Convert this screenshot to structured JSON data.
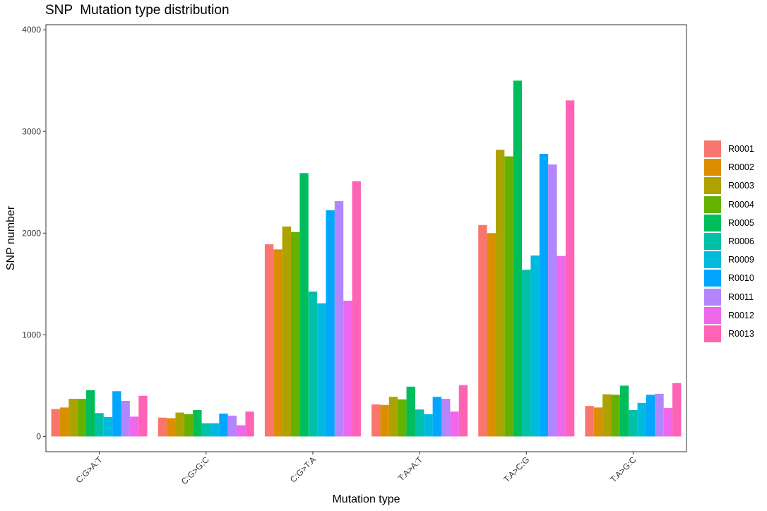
{
  "chart_data": {
    "type": "bar",
    "title": "SNP  Mutation type distribution",
    "xlabel": "Mutation type",
    "ylabel": "SNP number",
    "ylim": [
      -150,
      4050
    ],
    "yticks": [
      0,
      1000,
      2000,
      3000,
      4000
    ],
    "grid": false,
    "legend_position": "right",
    "categories": [
      "C:G>A:T",
      "C:G>G:C",
      "C:G>T:A",
      "T:A>A:T",
      "T:A>C:G",
      "T:A>G:C"
    ],
    "series": [
      {
        "name": "R0001",
        "color": "#F8766D",
        "values": [
          270,
          185,
          1890,
          315,
          2080,
          300
        ]
      },
      {
        "name": "R0002",
        "color": "#DB8E00",
        "values": [
          285,
          180,
          1840,
          310,
          2000,
          285
        ]
      },
      {
        "name": "R0003",
        "color": "#AEA200",
        "values": [
          370,
          235,
          2065,
          390,
          2820,
          415
        ]
      },
      {
        "name": "R0004",
        "color": "#64B200",
        "values": [
          370,
          220,
          2010,
          365,
          2755,
          410
        ]
      },
      {
        "name": "R0005",
        "color": "#00BD5C",
        "values": [
          455,
          260,
          2590,
          490,
          3500,
          500
        ]
      },
      {
        "name": "R0006",
        "color": "#00C1A7",
        "values": [
          230,
          130,
          1425,
          265,
          1640,
          260
        ]
      },
      {
        "name": "R0009",
        "color": "#00BADE",
        "values": [
          190,
          130,
          1310,
          220,
          1780,
          330
        ]
      },
      {
        "name": "R0010",
        "color": "#00A6FF",
        "values": [
          445,
          225,
          2225,
          390,
          2780,
          410
        ]
      },
      {
        "name": "R0011",
        "color": "#B385FF",
        "values": [
          350,
          205,
          2315,
          370,
          2675,
          420
        ]
      },
      {
        "name": "R0012",
        "color": "#EF67EB",
        "values": [
          195,
          110,
          1335,
          245,
          1775,
          280
        ]
      },
      {
        "name": "R0013",
        "color": "#FF63B6",
        "values": [
          400,
          245,
          2510,
          505,
          3305,
          525
        ]
      }
    ]
  }
}
